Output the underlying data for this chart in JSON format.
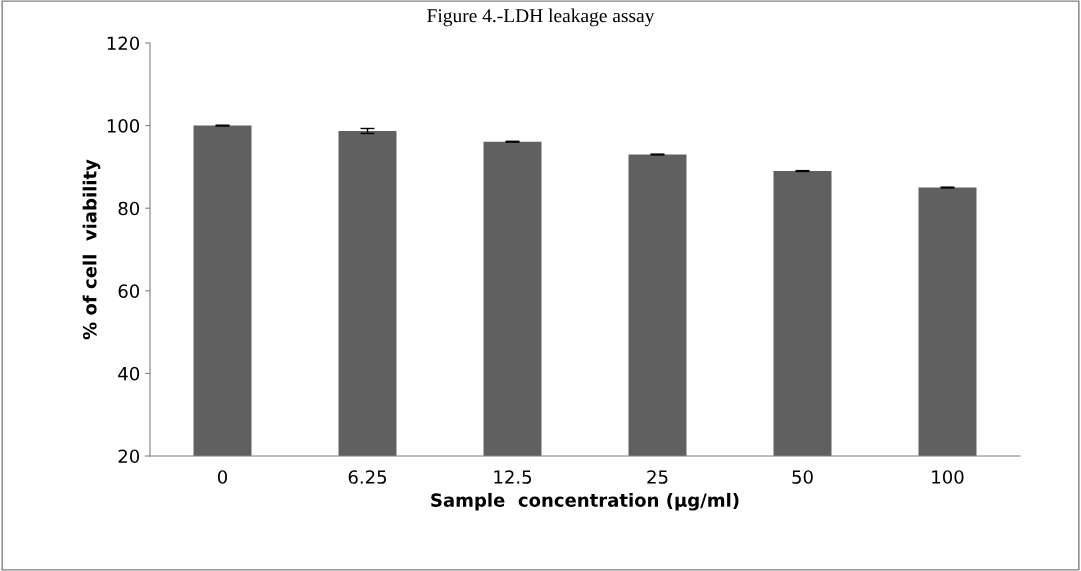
{
  "chart_data": {
    "type": "bar",
    "title": "Figure 4.-LDH leakage assay",
    "xlabel": "Sample  concentration (µg/ml)",
    "ylabel": "% of cell  viability",
    "categories": [
      "0",
      "6.25",
      "12.5",
      "25",
      "50",
      "100"
    ],
    "values": [
      100,
      98.7,
      96.1,
      93,
      89,
      85
    ],
    "errors": [
      0.1,
      0.6,
      0.1,
      0.1,
      0.1,
      0.1
    ],
    "color": "#606060",
    "ylim": [
      20,
      120
    ],
    "yticks": [
      20,
      40,
      60,
      80,
      100,
      120
    ],
    "grid": false,
    "legend": false
  }
}
